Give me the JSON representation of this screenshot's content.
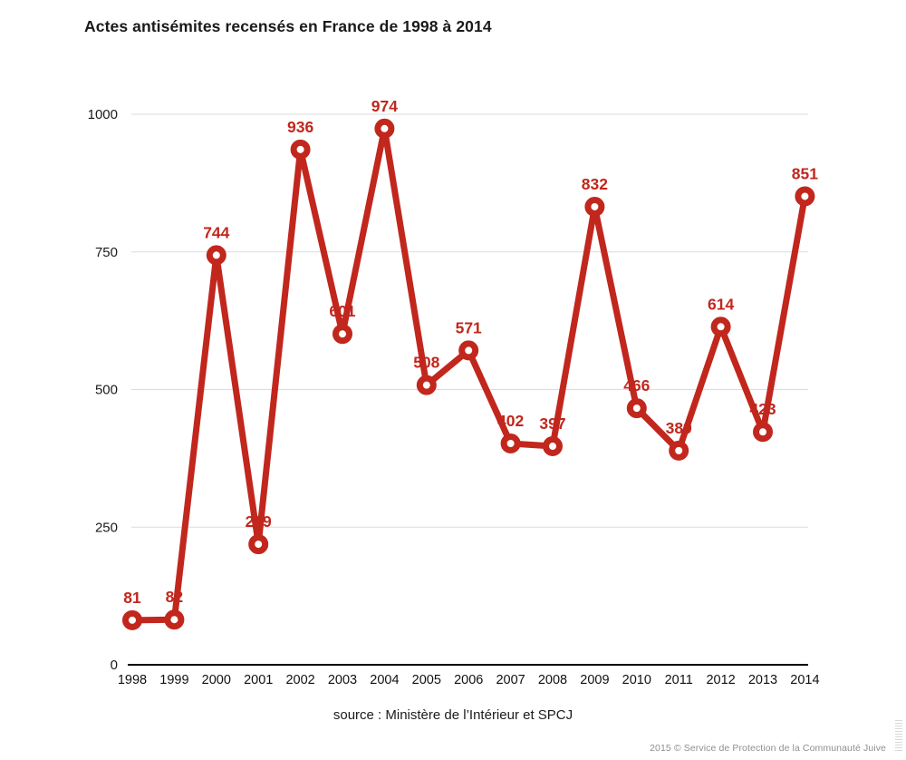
{
  "title": "Actes antisémites recensés en France de 1998 à 2014",
  "source_caption": "source : Ministère de l’Intérieur et SPCJ",
  "footer": {
    "copyright": "2015 © Service de Protection de la Communauté Juive"
  },
  "colors": {
    "series": "#c1271d",
    "grid": "#dcdcdc",
    "axis": "#000000",
    "tick_text": "#1a1a1a",
    "muted_text": "#8f8f8f",
    "marker_fill": "#ffffff"
  },
  "chart_data": {
    "type": "line",
    "title": "Actes antisémites recensés en France de 1998 à 2014",
    "categories": [
      "1998",
      "1999",
      "2000",
      "2001",
      "2002",
      "2003",
      "2004",
      "2005",
      "2006",
      "2007",
      "2008",
      "2009",
      "2010",
      "2011",
      "2012",
      "2013",
      "2014"
    ],
    "values": [
      81,
      82,
      744,
      219,
      936,
      601,
      974,
      508,
      571,
      402,
      397,
      832,
      466,
      389,
      614,
      423,
      851
    ],
    "xlabel": "",
    "ylabel": "",
    "ylim": [
      0,
      1000
    ],
    "yticks": [
      0,
      250,
      500,
      750,
      1000
    ],
    "grid": true,
    "legend": "none",
    "marker": "open-circle",
    "data_labels": true,
    "series_name": "Actes antisémites recensés"
  }
}
